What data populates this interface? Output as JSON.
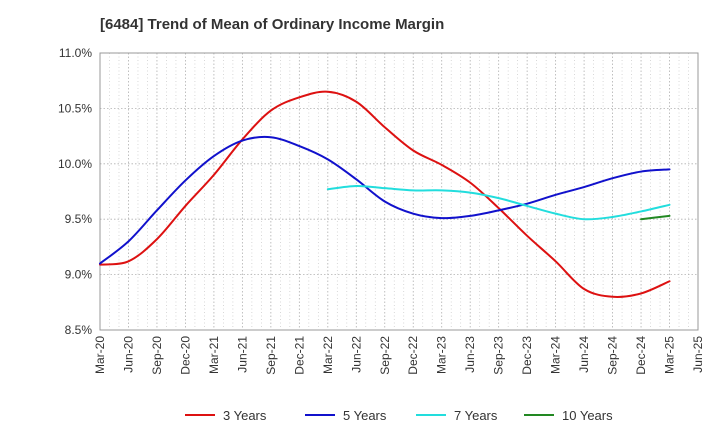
{
  "chart_data": {
    "type": "line",
    "title": "[6484]  Trend of Mean of Ordinary Income Margin",
    "xlabel": "",
    "ylabel": "",
    "x_ticks": [
      "Mar-20",
      "Jun-20",
      "Sep-20",
      "Dec-20",
      "Mar-21",
      "Jun-21",
      "Sep-21",
      "Dec-21",
      "Mar-22",
      "Jun-22",
      "Sep-22",
      "Dec-22",
      "Mar-23",
      "Jun-23",
      "Sep-23",
      "Dec-23",
      "Mar-24",
      "Jun-24",
      "Sep-24",
      "Dec-24",
      "Mar-25",
      "Jun-25"
    ],
    "y_ticks": [
      "8.5%",
      "9.0%",
      "9.5%",
      "10.0%",
      "10.5%",
      "11.0%"
    ],
    "ylim": [
      8.5,
      11.0
    ],
    "grid": true,
    "legend_position": "bottom",
    "series": [
      {
        "name": "3 Years",
        "color": "#dd1111",
        "x": [
          "Mar-20",
          "Jun-20",
          "Sep-20",
          "Dec-20",
          "Mar-21",
          "Jun-21",
          "Sep-21",
          "Dec-21",
          "Mar-22",
          "Jun-22",
          "Sep-22",
          "Dec-22",
          "Mar-23",
          "Jun-23",
          "Sep-23",
          "Dec-23",
          "Mar-24",
          "Jun-24",
          "Sep-24",
          "Dec-24",
          "Mar-25"
        ],
        "values": [
          9.09,
          9.12,
          9.32,
          9.62,
          9.9,
          10.22,
          10.48,
          10.6,
          10.65,
          10.56,
          10.33,
          10.12,
          9.99,
          9.83,
          9.6,
          9.35,
          9.12,
          8.87,
          8.8,
          8.83,
          8.94
        ]
      },
      {
        "name": "5 Years",
        "color": "#1111cc",
        "x": [
          "Mar-20",
          "Jun-20",
          "Sep-20",
          "Dec-20",
          "Mar-21",
          "Jun-21",
          "Sep-21",
          "Dec-21",
          "Mar-22",
          "Jun-22",
          "Sep-22",
          "Dec-22",
          "Mar-23",
          "Jun-23",
          "Sep-23",
          "Dec-23",
          "Mar-24",
          "Jun-24",
          "Sep-24",
          "Dec-24",
          "Mar-25"
        ],
        "values": [
          9.1,
          9.3,
          9.58,
          9.85,
          10.07,
          10.21,
          10.24,
          10.16,
          10.04,
          9.86,
          9.66,
          9.55,
          9.51,
          9.53,
          9.58,
          9.64,
          9.72,
          9.79,
          9.87,
          9.93,
          9.95
        ]
      },
      {
        "name": "7 Years",
        "color": "#22dddd",
        "x": [
          "Mar-22",
          "Jun-22",
          "Sep-22",
          "Dec-22",
          "Mar-23",
          "Jun-23",
          "Sep-23",
          "Dec-23",
          "Mar-24",
          "Jun-24",
          "Sep-24",
          "Dec-24",
          "Mar-25"
        ],
        "values": [
          9.77,
          9.8,
          9.78,
          9.76,
          9.76,
          9.74,
          9.69,
          9.62,
          9.55,
          9.5,
          9.52,
          9.57,
          9.63
        ]
      },
      {
        "name": "10 Years",
        "color": "#228822",
        "x": [
          "Dec-24",
          "Mar-25"
        ],
        "values": [
          9.5,
          9.53
        ]
      }
    ]
  }
}
